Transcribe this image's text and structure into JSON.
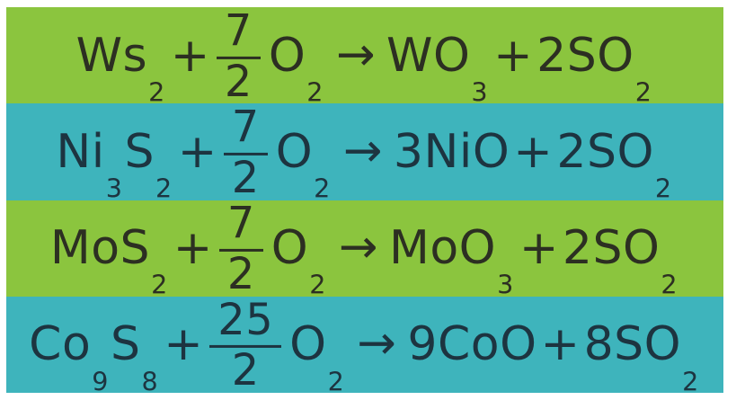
{
  "panel": {
    "background": "#ffffff",
    "description": "Table of metal sulfide oxidation chemical equations on alternating colored bands",
    "band_colors": {
      "green": "#8bc53e",
      "teal": "#3eb4bc"
    },
    "rows": [
      {
        "id": "tungsten-sulfide-oxidation",
        "band_color": "#8bc53e",
        "text_color": "#2c2f22",
        "equation_text": "Ws2 + 7/2 O2 → WO3 + 2SO2",
        "segments": [
          {
            "t": "text",
            "v": "Ws"
          },
          {
            "t": "sub",
            "v": "2"
          },
          {
            "t": "plus",
            "v": "+"
          },
          {
            "t": "frac",
            "num": "7",
            "den": "2"
          },
          {
            "t": "text",
            "v": "O"
          },
          {
            "t": "sub",
            "v": "2"
          },
          {
            "t": "arrow",
            "v": "→"
          },
          {
            "t": "text",
            "v": "WO"
          },
          {
            "t": "sub",
            "v": "3"
          },
          {
            "t": "plus",
            "v": "+"
          },
          {
            "t": "text",
            "v": "2SO"
          },
          {
            "t": "sub",
            "v": "2"
          }
        ]
      },
      {
        "id": "nickel-sulfide-oxidation",
        "band_color": "#3eb4bc",
        "text_color": "#1d3440",
        "equation_text": "Ni3S2 + 7/2 O2 → 3NiO + 2SO2",
        "segments": [
          {
            "t": "text",
            "v": "Ni"
          },
          {
            "t": "sub",
            "v": "3"
          },
          {
            "t": "text",
            "v": "S"
          },
          {
            "t": "sub",
            "v": "2"
          },
          {
            "t": "plus",
            "v": "+"
          },
          {
            "t": "frac",
            "num": "7",
            "den": "2"
          },
          {
            "t": "text",
            "v": "O"
          },
          {
            "t": "sub",
            "v": "2"
          },
          {
            "t": "arrow",
            "v": "→"
          },
          {
            "t": "text",
            "v": "3NiO"
          },
          {
            "t": "plus",
            "v": "+"
          },
          {
            "t": "text",
            "v": "2SO"
          },
          {
            "t": "sub",
            "v": "2"
          }
        ]
      },
      {
        "id": "molybdenum-sulfide-oxidation",
        "band_color": "#8bc53e",
        "text_color": "#2c2f22",
        "equation_text": "MoS2 + 7/2 O2 → MoO3 + 2SO2",
        "segments": [
          {
            "t": "text",
            "v": "MoS"
          },
          {
            "t": "sub",
            "v": "2"
          },
          {
            "t": "plus",
            "v": "+"
          },
          {
            "t": "frac",
            "num": "7",
            "den": "2"
          },
          {
            "t": "text",
            "v": "O"
          },
          {
            "t": "sub",
            "v": "2"
          },
          {
            "t": "arrow",
            "v": "→"
          },
          {
            "t": "text",
            "v": "MoO"
          },
          {
            "t": "sub",
            "v": "3"
          },
          {
            "t": "plus",
            "v": "+"
          },
          {
            "t": "text",
            "v": "2SO"
          },
          {
            "t": "sub",
            "v": "2"
          }
        ]
      },
      {
        "id": "cobalt-sulfide-oxidation",
        "band_color": "#3eb4bc",
        "text_color": "#1d3440",
        "equation_text": "Co9S8 + 25/2 O2 → 9CoO + 8SO2",
        "segments": [
          {
            "t": "text",
            "v": "Co"
          },
          {
            "t": "sub",
            "v": "9"
          },
          {
            "t": "text",
            "v": "S"
          },
          {
            "t": "sub",
            "v": "8"
          },
          {
            "t": "plus",
            "v": "+"
          },
          {
            "t": "frac",
            "num": "25",
            "den": "2"
          },
          {
            "t": "text",
            "v": "O"
          },
          {
            "t": "sub",
            "v": "2"
          },
          {
            "t": "arrow",
            "v": "→"
          },
          {
            "t": "text",
            "v": "9CoO"
          },
          {
            "t": "plus",
            "v": "+"
          },
          {
            "t": "text",
            "v": "8SO"
          },
          {
            "t": "sub",
            "v": "2"
          }
        ]
      }
    ]
  }
}
